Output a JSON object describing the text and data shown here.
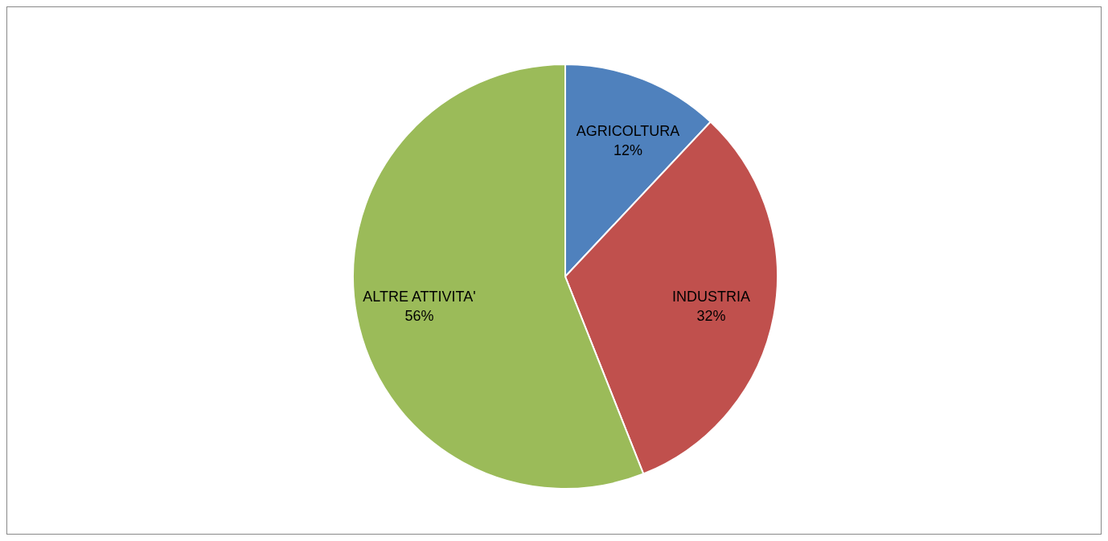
{
  "chart_data": {
    "type": "pie",
    "categories": [
      "AGRICOLTURA",
      "INDUSTRIA",
      "ALTRE ATTIVITA'"
    ],
    "values": [
      12,
      32,
      56
    ],
    "colors": [
      "#4f81bd",
      "#c0504d",
      "#9bbb59"
    ],
    "value_labels": [
      "12%",
      "32%",
      "56%"
    ]
  }
}
